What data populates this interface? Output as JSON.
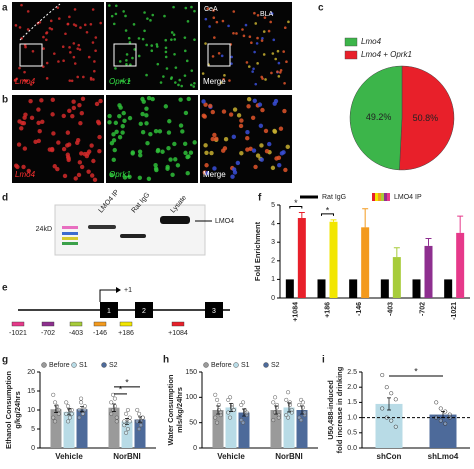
{
  "panel_letters": [
    "a",
    "b",
    "c",
    "d",
    "e",
    "f",
    "g",
    "h",
    "i"
  ],
  "images": {
    "a": {
      "labels": [
        "Lmo4",
        "Oprk1",
        "Merge"
      ],
      "region_labels": [
        "CeA",
        "BLA"
      ]
    },
    "b": {
      "labels": [
        "Lmo4",
        "Oprk1",
        "Merge"
      ]
    }
  },
  "blot": {
    "lanes": [
      "LMO4 IP",
      "Rat IgG",
      "Lysate"
    ],
    "size_label": "24kD",
    "band_label": "LMO4"
  },
  "gene": {
    "tss_label": "+1",
    "exons": [
      "1",
      "2",
      "3"
    ],
    "sites": [
      "-1021",
      "-702",
      "-403",
      "-146",
      "+186",
      "+1084"
    ]
  },
  "chart_data": [
    {
      "type": "pie",
      "categories": [
        "Lmo4",
        "Lmo4 + Oprk1"
      ],
      "values": [
        49.2,
        50.8
      ],
      "value_labels": [
        "49.2%",
        "50.8%"
      ],
      "colors": [
        "#3cb54a",
        "#e8202a"
      ]
    },
    {
      "type": "bar",
      "y_label": [
        "Fold Enrichment"
      ],
      "categories": [
        "+1084",
        "+186",
        "-146",
        "-403",
        "-702",
        "-1021"
      ],
      "series": [
        {
          "name": "Rat IgG",
          "color": "#000000",
          "values": [
            1,
            1,
            1,
            1,
            1,
            1
          ]
        },
        {
          "name": "LMO4 IP",
          "colors": [
            "#e8202a",
            "#f2e600",
            "#f39a1e",
            "#a7cc3a",
            "#8e2f8f",
            "#e6398a"
          ],
          "values": [
            4.3,
            4.1,
            3.8,
            2.2,
            2.8,
            3.5
          ],
          "errors": [
            0.3,
            0.1,
            1.0,
            0.5,
            0.4,
            0.9
          ]
        }
      ],
      "ylim": [
        0,
        5
      ],
      "yticks": [
        0,
        1,
        2,
        3,
        4,
        5
      ],
      "annotations": [
        "*",
        "*"
      ]
    },
    {
      "type": "bar",
      "y_label": [
        "Ethanol Consumption",
        "g/kg/24hrs"
      ],
      "categories": [
        "Vehicle",
        "NorBNI"
      ],
      "series": [
        {
          "name": "Before",
          "color": "#9a9a9a",
          "values": [
            10.2,
            10.6
          ],
          "errors": [
            0.9,
            1.0
          ],
          "points": [
            [
              8,
              12,
              10,
              9,
              14,
              7,
              11,
              10
            ],
            [
              9,
              14,
              11,
              8,
              12,
              10,
              13,
              7
            ]
          ]
        },
        {
          "name": "S1",
          "color": "#b8dbe6",
          "values": [
            9.5,
            7.0
          ],
          "errors": [
            0.8,
            0.8
          ],
          "points": [
            [
              9,
              11,
              8,
              10,
              12,
              7,
              10,
              9
            ],
            [
              6,
              9,
              5,
              8,
              7,
              4,
              10,
              7
            ]
          ]
        },
        {
          "name": "S2",
          "color": "#4d6a9a",
          "values": [
            10.2,
            7.5
          ],
          "errors": [
            0.7,
            0.7
          ],
          "points": [
            [
              10,
              12,
              9,
              11,
              8,
              13,
              9,
              10
            ],
            [
              7,
              9,
              6,
              8,
              10,
              5,
              7,
              8
            ]
          ]
        }
      ],
      "ylim": [
        0,
        20
      ],
      "yticks": [
        0,
        5,
        10,
        15,
        20
      ],
      "annotations": [
        "*",
        "*"
      ]
    },
    {
      "type": "bar",
      "y_label": [
        "Water Consumption",
        "mls/kg/24hrs"
      ],
      "categories": [
        "Vehicle",
        "NorBNI"
      ],
      "series": [
        {
          "name": "Before",
          "color": "#9a9a9a",
          "values": [
            75,
            75
          ],
          "errors": [
            8,
            8
          ],
          "points": [
            [
              60,
              95,
              75,
              70,
              105,
              50,
              85,
              65
            ],
            [
              55,
              100,
              80,
              65,
              90,
              70,
              85,
              60
            ]
          ]
        },
        {
          "name": "S1",
          "color": "#b8dbe6",
          "values": [
            80,
            80
          ],
          "errors": [
            8,
            9
          ],
          "points": [
            [
              70,
              100,
              85,
              75,
              95,
              60,
              80,
              75
            ],
            [
              65,
              110,
              90,
              70,
              95,
              60,
              85,
              75
            ]
          ]
        },
        {
          "name": "S2",
          "color": "#4d6a9a",
          "values": [
            70,
            75
          ],
          "errors": [
            7,
            8
          ],
          "points": [
            [
              55,
              90,
              70,
              65,
              85,
              50,
              75,
              70
            ],
            [
              60,
              95,
              80,
              65,
              85,
              55,
              90,
              70
            ]
          ]
        }
      ],
      "ylim": [
        0,
        150
      ],
      "yticks": [
        0,
        50,
        100,
        150
      ]
    },
    {
      "type": "bar",
      "y_label": [
        "U50,488-induced",
        "fold increase in drinking"
      ],
      "categories": [
        "shCon",
        "shLmo4"
      ],
      "color": "#b8dbe6",
      "colors": [
        "#b8dbe6",
        "#4d6a9a"
      ],
      "values": [
        1.45,
        1.1
      ],
      "errors": [
        0.2,
        0.1
      ],
      "points": [
        [
          2.4,
          2.0,
          1.8,
          1.6,
          1.3,
          1.0,
          0.9,
          0.7
        ],
        [
          1.5,
          1.3,
          1.2,
          1.1,
          1.0,
          0.9,
          0.8,
          1.0
        ]
      ],
      "ylim": [
        0,
        2.5
      ],
      "yticks": [
        {
          "value": 0,
          "label": "0.0"
        },
        0.5,
        {
          "value": 1,
          "label": "1.0"
        },
        1.5,
        {
          "value": 2,
          "label": "2.0"
        },
        2.5
      ],
      "reference_line": 1,
      "annotations": [
        "*"
      ]
    }
  ]
}
